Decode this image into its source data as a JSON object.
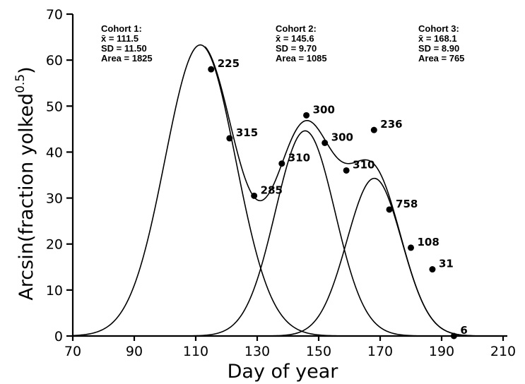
{
  "chart_data": {
    "type": "line",
    "xlabel": "Day of year",
    "ylabel_main": "Arcsin(fraction yolked",
    "ylabel_exp": "0.5",
    "ylabel_close": ")",
    "xlim": [
      70,
      210
    ],
    "ylim": [
      0,
      70
    ],
    "xticks": [
      70,
      90,
      110,
      130,
      150,
      170,
      190,
      210
    ],
    "yticks": [
      0,
      10,
      20,
      30,
      40,
      50,
      60,
      70
    ],
    "grid": false,
    "cohorts": [
      {
        "name": "Cohort 1:",
        "mean": 111.5,
        "sd": 11.5,
        "area": 1825,
        "mean_text": "x̄ = 111.5",
        "sd_text": "SD = 11.50",
        "area_text": "Area = 1825"
      },
      {
        "name": "Cohort 2:",
        "mean": 145.6,
        "sd": 9.7,
        "area": 1085,
        "mean_text": "x̄ = 145.6",
        "sd_text": "SD = 9.70",
        "area_text": "Area = 1085"
      },
      {
        "name": "Cohort 3:",
        "mean": 168.1,
        "sd": 8.9,
        "area": 765,
        "mean_text": "x̄ = 168.1",
        "sd_text": "SD = 8.90",
        "area_text": "Area = 765"
      }
    ],
    "points": [
      {
        "x": 115,
        "y": 58,
        "label": "225"
      },
      {
        "x": 121,
        "y": 43,
        "label": "315"
      },
      {
        "x": 129,
        "y": 30.5,
        "label": "285"
      },
      {
        "x": 138,
        "y": 37.5,
        "label": "310"
      },
      {
        "x": 146,
        "y": 48,
        "label": "300"
      },
      {
        "x": 152,
        "y": 42,
        "label": "300"
      },
      {
        "x": 159,
        "y": 36,
        "label": "310"
      },
      {
        "x": 168,
        "y": 44.8,
        "label": "236"
      },
      {
        "x": 173,
        "y": 27.5,
        "label": "758"
      },
      {
        "x": 180,
        "y": 19.2,
        "label": "108"
      },
      {
        "x": 187,
        "y": 14.5,
        "label": "31"
      },
      {
        "x": 194,
        "y": 0,
        "label": "6"
      }
    ]
  }
}
